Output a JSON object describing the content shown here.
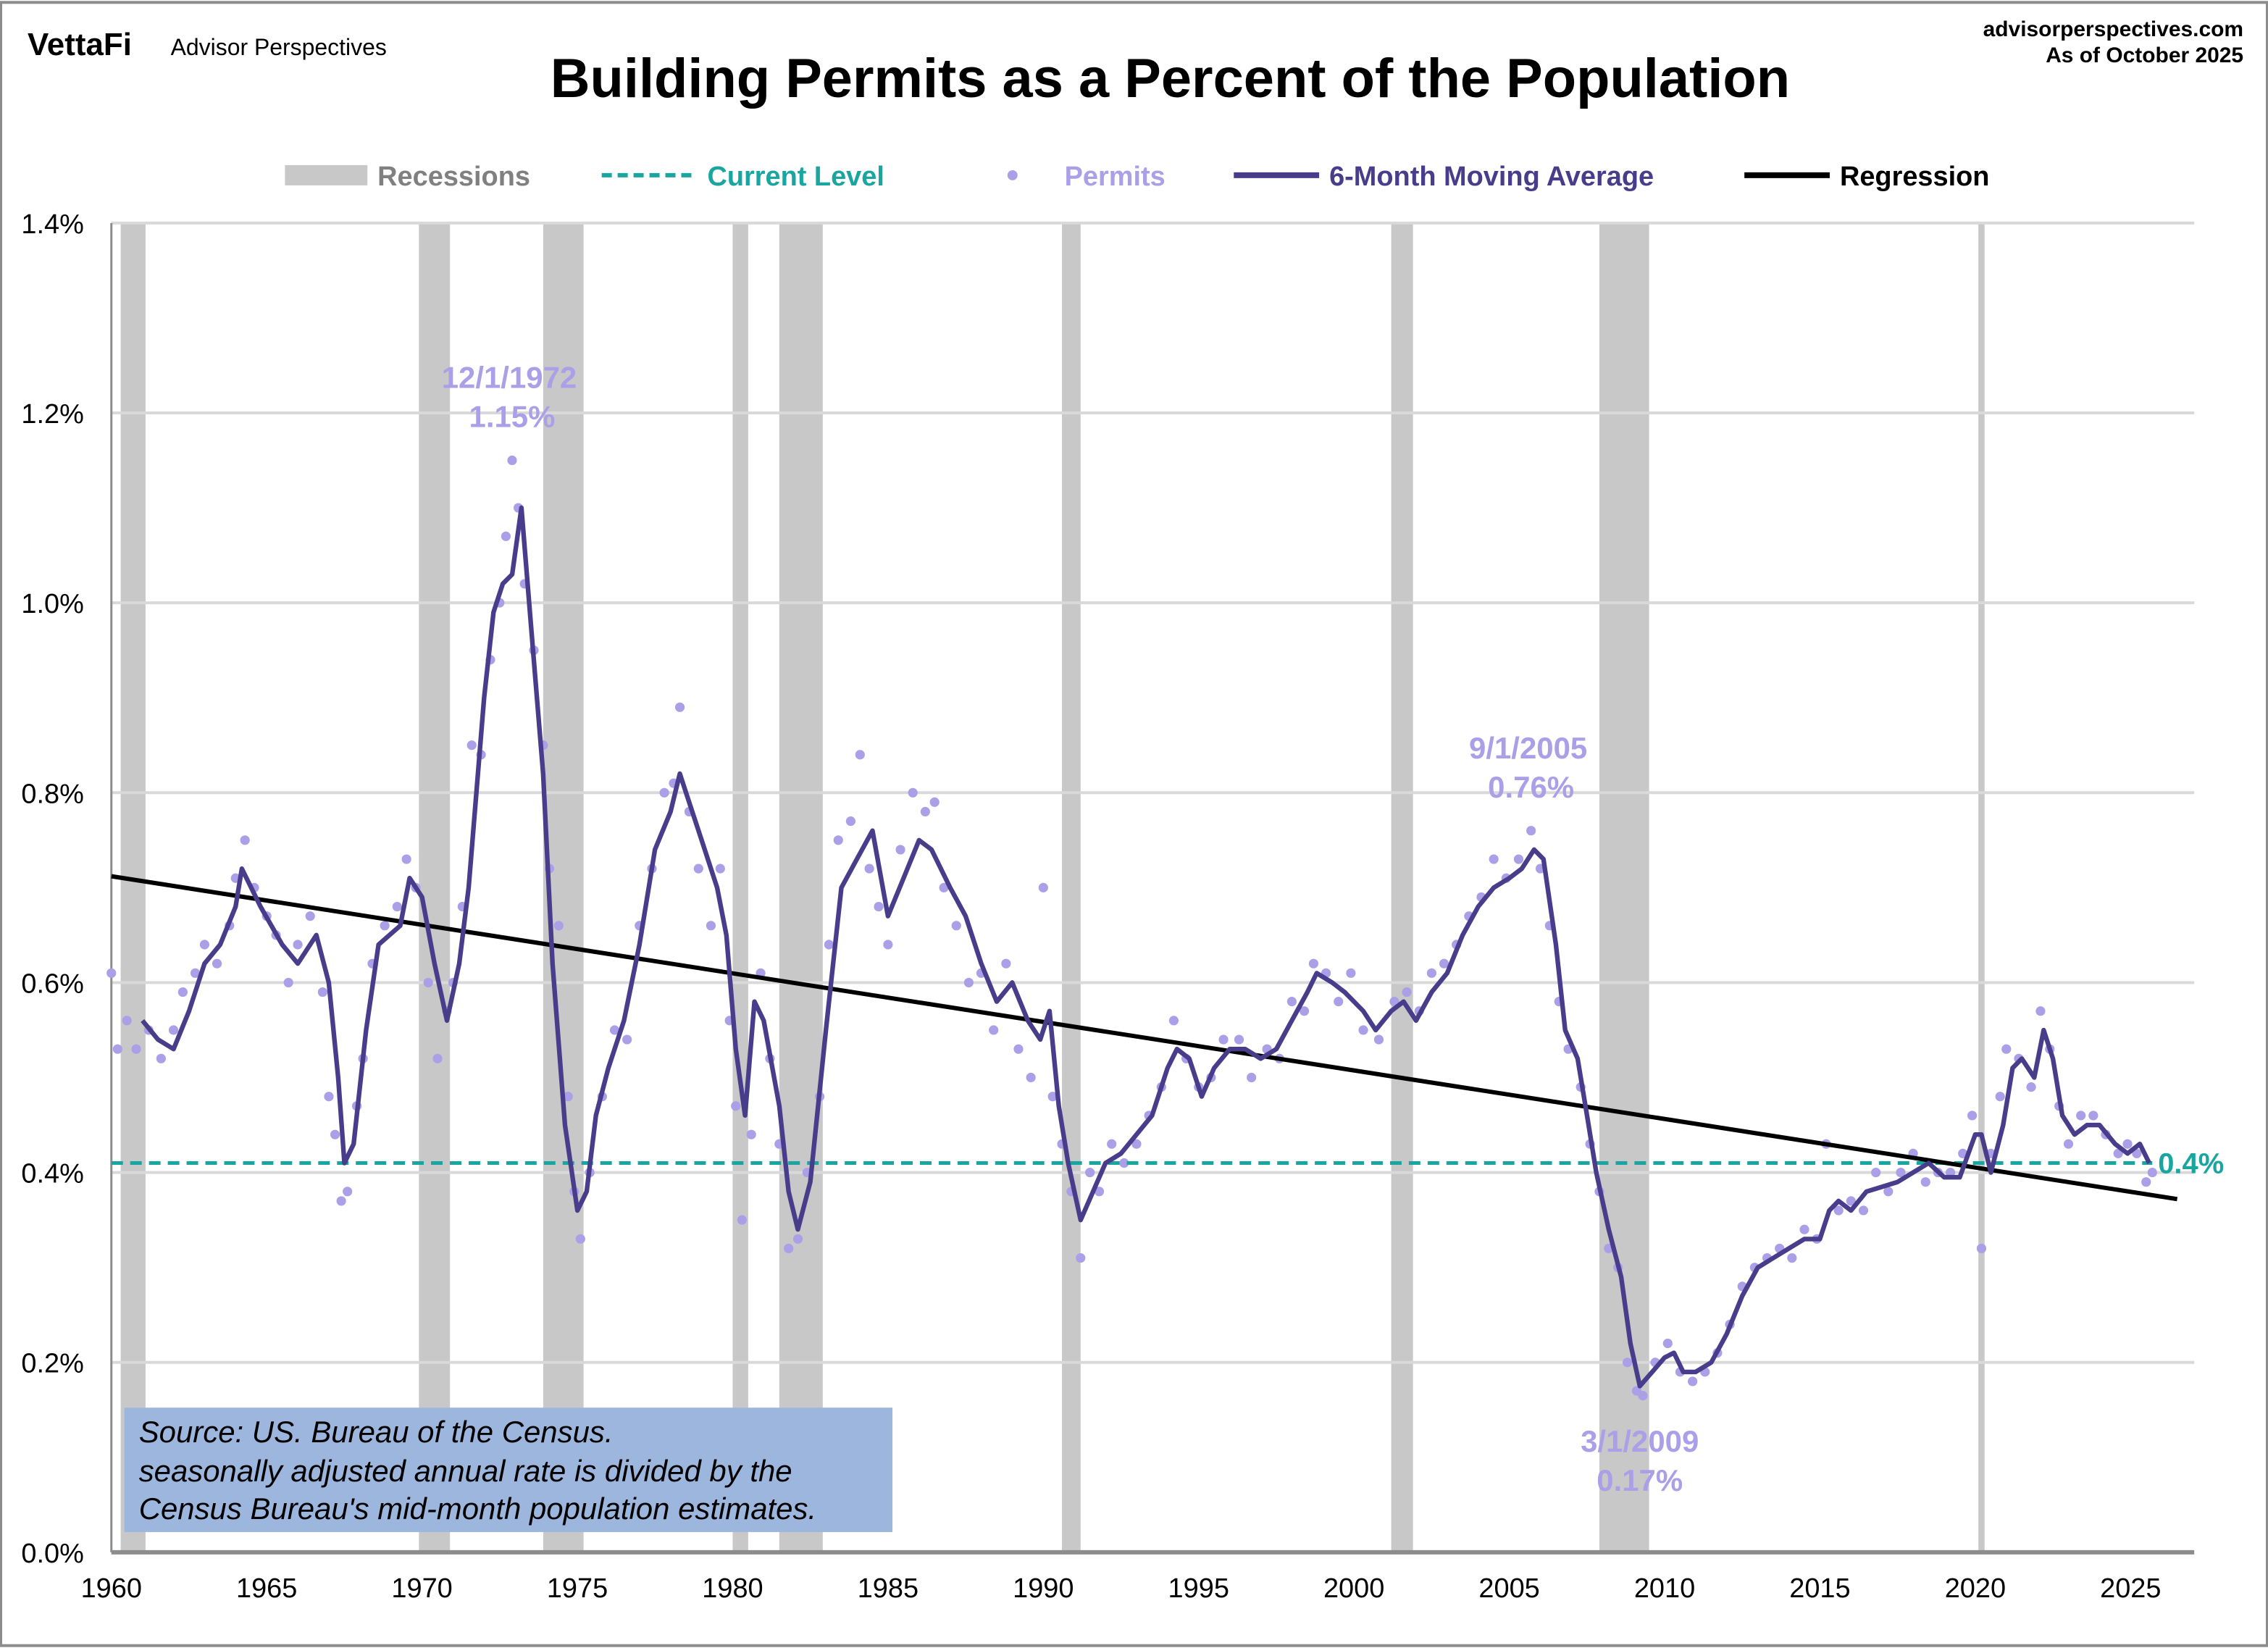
{
  "header": {
    "logo": "VettaFi",
    "brand": "Advisor Perspectives",
    "site": "advisorperspectives.com",
    "as_of": "As of October 2025"
  },
  "source_note": [
    "Source: US. Bureau of the Census.",
    "seasonally adjusted annual rate is divided by the",
    "Census Bureau's mid-month population estimates."
  ],
  "colors": {
    "recession": "#c8c8c8",
    "current_level": "#1aa6a0",
    "permits": "#ab9fe8",
    "moving_average": "#483d8b",
    "regression": "#000000",
    "source_box": "#9cb6de",
    "grid": "#d9d9d9"
  },
  "chart_data": {
    "type": "line",
    "title": "Building Permits as a Percent of the Population",
    "xlabel": "",
    "ylabel": "",
    "xlim": [
      1960,
      2026.8
    ],
    "ylim": [
      0,
      1.4
    ],
    "grid": true,
    "legend_placement": "top",
    "x_ticks": [
      "1960",
      "1965",
      "1970",
      "1975",
      "1980",
      "1985",
      "1990",
      "1995",
      "2000",
      "2005",
      "2010",
      "2015",
      "2020",
      "2025"
    ],
    "y_ticks": [
      "0.0%",
      "0.2%",
      "0.4%",
      "0.6%",
      "0.8%",
      "1.0%",
      "1.2%",
      "1.4%"
    ],
    "legend": [
      "Recessions",
      "Current Level",
      "Permits",
      "6-Month Moving Average",
      "Regression"
    ],
    "recessions": [
      [
        1960.3,
        1961.1
      ],
      [
        1969.9,
        1970.9
      ],
      [
        1973.9,
        1975.2
      ],
      [
        1980.0,
        1980.5
      ],
      [
        1981.5,
        1982.9
      ],
      [
        1990.6,
        1991.2
      ],
      [
        2001.2,
        2001.9
      ],
      [
        2007.9,
        2009.5
      ],
      [
        2020.1,
        2020.3
      ]
    ],
    "current_level": {
      "value": 0.41,
      "label": "0.4%"
    },
    "regression": {
      "start": [
        1960,
        0.712
      ],
      "end": [
        2026.5,
        0.372
      ]
    },
    "annotations": [
      {
        "date": "12/1/1972",
        "value_label": "1.15%",
        "x": 1972.9,
        "y": 1.15
      },
      {
        "date": "9/1/2005",
        "value_label": "0.76%",
        "x": 2005.7,
        "y": 0.76
      },
      {
        "date": "3/1/2009",
        "value_label": "0.17%",
        "x": 2009.2,
        "y": 0.17
      }
    ],
    "moving_average": [
      [
        1961.0,
        0.56
      ],
      [
        1961.5,
        0.54
      ],
      [
        1962.0,
        0.53
      ],
      [
        1962.5,
        0.57
      ],
      [
        1963.0,
        0.62
      ],
      [
        1963.5,
        0.64
      ],
      [
        1964.0,
        0.68
      ],
      [
        1964.2,
        0.72
      ],
      [
        1964.8,
        0.68
      ],
      [
        1965.5,
        0.64
      ],
      [
        1966.0,
        0.62
      ],
      [
        1966.6,
        0.65
      ],
      [
        1967.0,
        0.6
      ],
      [
        1967.3,
        0.5
      ],
      [
        1967.5,
        0.41
      ],
      [
        1967.8,
        0.43
      ],
      [
        1968.2,
        0.55
      ],
      [
        1968.6,
        0.64
      ],
      [
        1969.3,
        0.66
      ],
      [
        1969.6,
        0.71
      ],
      [
        1970.0,
        0.69
      ],
      [
        1970.4,
        0.62
      ],
      [
        1970.8,
        0.56
      ],
      [
        1971.2,
        0.62
      ],
      [
        1971.5,
        0.7
      ],
      [
        1972.0,
        0.9
      ],
      [
        1972.3,
        0.99
      ],
      [
        1972.6,
        1.02
      ],
      [
        1972.9,
        1.03
      ],
      [
        1973.2,
        1.1
      ],
      [
        1973.5,
        0.98
      ],
      [
        1973.9,
        0.82
      ],
      [
        1974.2,
        0.62
      ],
      [
        1974.6,
        0.45
      ],
      [
        1975.0,
        0.36
      ],
      [
        1975.3,
        0.38
      ],
      [
        1975.6,
        0.46
      ],
      [
        1976.0,
        0.51
      ],
      [
        1976.5,
        0.56
      ],
      [
        1977.0,
        0.64
      ],
      [
        1977.5,
        0.74
      ],
      [
        1978.0,
        0.78
      ],
      [
        1978.3,
        0.82
      ],
      [
        1978.5,
        0.8
      ],
      [
        1979.0,
        0.75
      ],
      [
        1979.5,
        0.7
      ],
      [
        1979.8,
        0.65
      ],
      [
        1980.1,
        0.53
      ],
      [
        1980.4,
        0.46
      ],
      [
        1980.7,
        0.58
      ],
      [
        1981.0,
        0.56
      ],
      [
        1981.5,
        0.47
      ],
      [
        1981.8,
        0.38
      ],
      [
        1982.1,
        0.34
      ],
      [
        1982.5,
        0.39
      ],
      [
        1983.0,
        0.55
      ],
      [
        1983.5,
        0.7
      ],
      [
        1984.0,
        0.73
      ],
      [
        1984.5,
        0.76
      ],
      [
        1985.0,
        0.67
      ],
      [
        1985.5,
        0.71
      ],
      [
        1986.0,
        0.75
      ],
      [
        1986.4,
        0.74
      ],
      [
        1987.0,
        0.7
      ],
      [
        1987.5,
        0.67
      ],
      [
        1988.0,
        0.62
      ],
      [
        1988.5,
        0.58
      ],
      [
        1989.0,
        0.6
      ],
      [
        1989.5,
        0.56
      ],
      [
        1989.9,
        0.54
      ],
      [
        1990.2,
        0.57
      ],
      [
        1990.5,
        0.47
      ],
      [
        1990.8,
        0.41
      ],
      [
        1991.2,
        0.35
      ],
      [
        1991.6,
        0.38
      ],
      [
        1992.0,
        0.41
      ],
      [
        1992.5,
        0.42
      ],
      [
        1993.0,
        0.44
      ],
      [
        1993.5,
        0.46
      ],
      [
        1994.0,
        0.51
      ],
      [
        1994.3,
        0.53
      ],
      [
        1994.7,
        0.52
      ],
      [
        1995.1,
        0.48
      ],
      [
        1995.5,
        0.51
      ],
      [
        1996.0,
        0.53
      ],
      [
        1996.5,
        0.53
      ],
      [
        1997.0,
        0.52
      ],
      [
        1997.5,
        0.53
      ],
      [
        1998.0,
        0.56
      ],
      [
        1998.5,
        0.59
      ],
      [
        1998.8,
        0.61
      ],
      [
        1999.3,
        0.6
      ],
      [
        1999.7,
        0.59
      ],
      [
        2000.3,
        0.57
      ],
      [
        2000.7,
        0.55
      ],
      [
        2001.2,
        0.57
      ],
      [
        2001.6,
        0.58
      ],
      [
        2002.0,
        0.56
      ],
      [
        2002.5,
        0.59
      ],
      [
        2003.0,
        0.61
      ],
      [
        2003.5,
        0.65
      ],
      [
        2004.0,
        0.68
      ],
      [
        2004.5,
        0.7
      ],
      [
        2005.0,
        0.71
      ],
      [
        2005.4,
        0.72
      ],
      [
        2005.8,
        0.74
      ],
      [
        2006.1,
        0.73
      ],
      [
        2006.5,
        0.64
      ],
      [
        2006.8,
        0.55
      ],
      [
        2007.2,
        0.52
      ],
      [
        2007.5,
        0.46
      ],
      [
        2007.8,
        0.4
      ],
      [
        2008.2,
        0.34
      ],
      [
        2008.6,
        0.29
      ],
      [
        2008.9,
        0.22
      ],
      [
        2009.2,
        0.175
      ],
      [
        2009.6,
        0.19
      ],
      [
        2010.0,
        0.205
      ],
      [
        2010.3,
        0.21
      ],
      [
        2010.6,
        0.19
      ],
      [
        2011.0,
        0.19
      ],
      [
        2011.5,
        0.2
      ],
      [
        2012.0,
        0.23
      ],
      [
        2012.5,
        0.27
      ],
      [
        2013.0,
        0.3
      ],
      [
        2013.5,
        0.31
      ],
      [
        2014.0,
        0.32
      ],
      [
        2014.5,
        0.33
      ],
      [
        2015.0,
        0.33
      ],
      [
        2015.3,
        0.36
      ],
      [
        2015.6,
        0.37
      ],
      [
        2016.0,
        0.36
      ],
      [
        2016.5,
        0.38
      ],
      [
        2017.0,
        0.385
      ],
      [
        2017.5,
        0.39
      ],
      [
        2018.0,
        0.4
      ],
      [
        2018.5,
        0.41
      ],
      [
        2019.0,
        0.395
      ],
      [
        2019.5,
        0.395
      ],
      [
        2020.0,
        0.44
      ],
      [
        2020.2,
        0.44
      ],
      [
        2020.5,
        0.4
      ],
      [
        2020.9,
        0.45
      ],
      [
        2021.2,
        0.51
      ],
      [
        2021.5,
        0.52
      ],
      [
        2021.9,
        0.5
      ],
      [
        2022.2,
        0.55
      ],
      [
        2022.5,
        0.52
      ],
      [
        2022.8,
        0.46
      ],
      [
        2023.2,
        0.44
      ],
      [
        2023.6,
        0.45
      ],
      [
        2024.0,
        0.45
      ],
      [
        2024.5,
        0.43
      ],
      [
        2024.9,
        0.42
      ],
      [
        2025.3,
        0.43
      ],
      [
        2025.6,
        0.41
      ]
    ],
    "permits": [
      [
        1960.0,
        0.61
      ],
      [
        1960.2,
        0.53
      ],
      [
        1960.5,
        0.56
      ],
      [
        1960.8,
        0.53
      ],
      [
        1961.2,
        0.55
      ],
      [
        1961.6,
        0.52
      ],
      [
        1962.0,
        0.55
      ],
      [
        1962.3,
        0.59
      ],
      [
        1962.7,
        0.61
      ],
      [
        1963.0,
        0.64
      ],
      [
        1963.4,
        0.62
      ],
      [
        1963.8,
        0.66
      ],
      [
        1964.0,
        0.71
      ],
      [
        1964.3,
        0.75
      ],
      [
        1964.6,
        0.7
      ],
      [
        1965.0,
        0.67
      ],
      [
        1965.3,
        0.65
      ],
      [
        1965.7,
        0.6
      ],
      [
        1966.0,
        0.64
      ],
      [
        1966.4,
        0.67
      ],
      [
        1966.8,
        0.59
      ],
      [
        1967.0,
        0.48
      ],
      [
        1967.2,
        0.44
      ],
      [
        1967.4,
        0.37
      ],
      [
        1967.6,
        0.38
      ],
      [
        1967.9,
        0.47
      ],
      [
        1968.1,
        0.52
      ],
      [
        1968.4,
        0.62
      ],
      [
        1968.8,
        0.66
      ],
      [
        1969.2,
        0.68
      ],
      [
        1969.5,
        0.73
      ],
      [
        1969.8,
        0.7
      ],
      [
        1970.2,
        0.6
      ],
      [
        1970.5,
        0.52
      ],
      [
        1970.8,
        0.57
      ],
      [
        1971.0,
        0.6
      ],
      [
        1971.3,
        0.68
      ],
      [
        1971.6,
        0.85
      ],
      [
        1971.9,
        0.84
      ],
      [
        1972.2,
        0.94
      ],
      [
        1972.5,
        1.0
      ],
      [
        1972.7,
        1.07
      ],
      [
        1972.9,
        1.15
      ],
      [
        1973.1,
        1.1
      ],
      [
        1973.3,
        1.02
      ],
      [
        1973.6,
        0.95
      ],
      [
        1973.9,
        0.85
      ],
      [
        1974.1,
        0.72
      ],
      [
        1974.4,
        0.66
      ],
      [
        1974.7,
        0.48
      ],
      [
        1974.9,
        0.38
      ],
      [
        1975.1,
        0.33
      ],
      [
        1975.4,
        0.4
      ],
      [
        1975.8,
        0.48
      ],
      [
        1976.2,
        0.55
      ],
      [
        1976.6,
        0.54
      ],
      [
        1977.0,
        0.66
      ],
      [
        1977.4,
        0.72
      ],
      [
        1977.8,
        0.8
      ],
      [
        1978.1,
        0.81
      ],
      [
        1978.3,
        0.89
      ],
      [
        1978.6,
        0.78
      ],
      [
        1978.9,
        0.72
      ],
      [
        1979.3,
        0.66
      ],
      [
        1979.6,
        0.72
      ],
      [
        1979.9,
        0.56
      ],
      [
        1980.1,
        0.47
      ],
      [
        1980.3,
        0.35
      ],
      [
        1980.6,
        0.44
      ],
      [
        1980.9,
        0.61
      ],
      [
        1981.2,
        0.52
      ],
      [
        1981.5,
        0.43
      ],
      [
        1981.8,
        0.32
      ],
      [
        1982.1,
        0.33
      ],
      [
        1982.4,
        0.4
      ],
      [
        1982.8,
        0.48
      ],
      [
        1983.1,
        0.64
      ],
      [
        1983.4,
        0.75
      ],
      [
        1983.8,
        0.77
      ],
      [
        1984.1,
        0.84
      ],
      [
        1984.4,
        0.72
      ],
      [
        1984.7,
        0.68
      ],
      [
        1985.0,
        0.64
      ],
      [
        1985.4,
        0.74
      ],
      [
        1985.8,
        0.8
      ],
      [
        1986.2,
        0.78
      ],
      [
        1986.5,
        0.79
      ],
      [
        1986.8,
        0.7
      ],
      [
        1987.2,
        0.66
      ],
      [
        1987.6,
        0.6
      ],
      [
        1988.0,
        0.61
      ],
      [
        1988.4,
        0.55
      ],
      [
        1988.8,
        0.62
      ],
      [
        1989.2,
        0.53
      ],
      [
        1989.6,
        0.5
      ],
      [
        1990.0,
        0.7
      ],
      [
        1990.3,
        0.48
      ],
      [
        1990.6,
        0.43
      ],
      [
        1990.9,
        0.38
      ],
      [
        1991.2,
        0.31
      ],
      [
        1991.5,
        0.4
      ],
      [
        1991.8,
        0.38
      ],
      [
        1992.2,
        0.43
      ],
      [
        1992.6,
        0.41
      ],
      [
        1993.0,
        0.43
      ],
      [
        1993.4,
        0.46
      ],
      [
        1993.8,
        0.49
      ],
      [
        1994.2,
        0.56
      ],
      [
        1994.6,
        0.52
      ],
      [
        1995.0,
        0.49
      ],
      [
        1995.4,
        0.5
      ],
      [
        1995.8,
        0.54
      ],
      [
        1996.3,
        0.54
      ],
      [
        1996.7,
        0.5
      ],
      [
        1997.2,
        0.53
      ],
      [
        1997.6,
        0.52
      ],
      [
        1998.0,
        0.58
      ],
      [
        1998.4,
        0.57
      ],
      [
        1998.7,
        0.62
      ],
      [
        1999.1,
        0.61
      ],
      [
        1999.5,
        0.58
      ],
      [
        1999.9,
        0.61
      ],
      [
        2000.3,
        0.55
      ],
      [
        2000.8,
        0.54
      ],
      [
        2001.3,
        0.58
      ],
      [
        2001.7,
        0.59
      ],
      [
        2002.1,
        0.57
      ],
      [
        2002.5,
        0.61
      ],
      [
        2002.9,
        0.62
      ],
      [
        2003.3,
        0.64
      ],
      [
        2003.7,
        0.67
      ],
      [
        2004.1,
        0.69
      ],
      [
        2004.5,
        0.73
      ],
      [
        2004.9,
        0.71
      ],
      [
        2005.3,
        0.73
      ],
      [
        2005.7,
        0.76
      ],
      [
        2006.0,
        0.72
      ],
      [
        2006.3,
        0.66
      ],
      [
        2006.6,
        0.58
      ],
      [
        2006.9,
        0.53
      ],
      [
        2007.3,
        0.49
      ],
      [
        2007.6,
        0.43
      ],
      [
        2007.9,
        0.38
      ],
      [
        2008.2,
        0.32
      ],
      [
        2008.5,
        0.3
      ],
      [
        2008.8,
        0.2
      ],
      [
        2009.1,
        0.17
      ],
      [
        2009.3,
        0.165
      ],
      [
        2009.7,
        0.2
      ],
      [
        2010.1,
        0.22
      ],
      [
        2010.5,
        0.19
      ],
      [
        2010.9,
        0.18
      ],
      [
        2011.3,
        0.19
      ],
      [
        2011.7,
        0.21
      ],
      [
        2012.1,
        0.24
      ],
      [
        2012.5,
        0.28
      ],
      [
        2012.9,
        0.3
      ],
      [
        2013.3,
        0.31
      ],
      [
        2013.7,
        0.32
      ],
      [
        2014.1,
        0.31
      ],
      [
        2014.5,
        0.34
      ],
      [
        2014.9,
        0.33
      ],
      [
        2015.2,
        0.43
      ],
      [
        2015.6,
        0.36
      ],
      [
        2016.0,
        0.37
      ],
      [
        2016.4,
        0.36
      ],
      [
        2016.8,
        0.4
      ],
      [
        2017.2,
        0.38
      ],
      [
        2017.6,
        0.4
      ],
      [
        2018.0,
        0.42
      ],
      [
        2018.4,
        0.39
      ],
      [
        2018.8,
        0.4
      ],
      [
        2019.2,
        0.4
      ],
      [
        2019.6,
        0.42
      ],
      [
        2019.9,
        0.46
      ],
      [
        2020.2,
        0.32
      ],
      [
        2020.5,
        0.42
      ],
      [
        2020.8,
        0.48
      ],
      [
        2021.0,
        0.53
      ],
      [
        2021.4,
        0.52
      ],
      [
        2021.8,
        0.49
      ],
      [
        2022.1,
        0.57
      ],
      [
        2022.4,
        0.53
      ],
      [
        2022.7,
        0.47
      ],
      [
        2023.0,
        0.43
      ],
      [
        2023.4,
        0.46
      ],
      [
        2023.8,
        0.46
      ],
      [
        2024.2,
        0.44
      ],
      [
        2024.6,
        0.42
      ],
      [
        2024.9,
        0.43
      ],
      [
        2025.2,
        0.42
      ],
      [
        2025.5,
        0.39
      ],
      [
        2025.7,
        0.4
      ]
    ]
  }
}
